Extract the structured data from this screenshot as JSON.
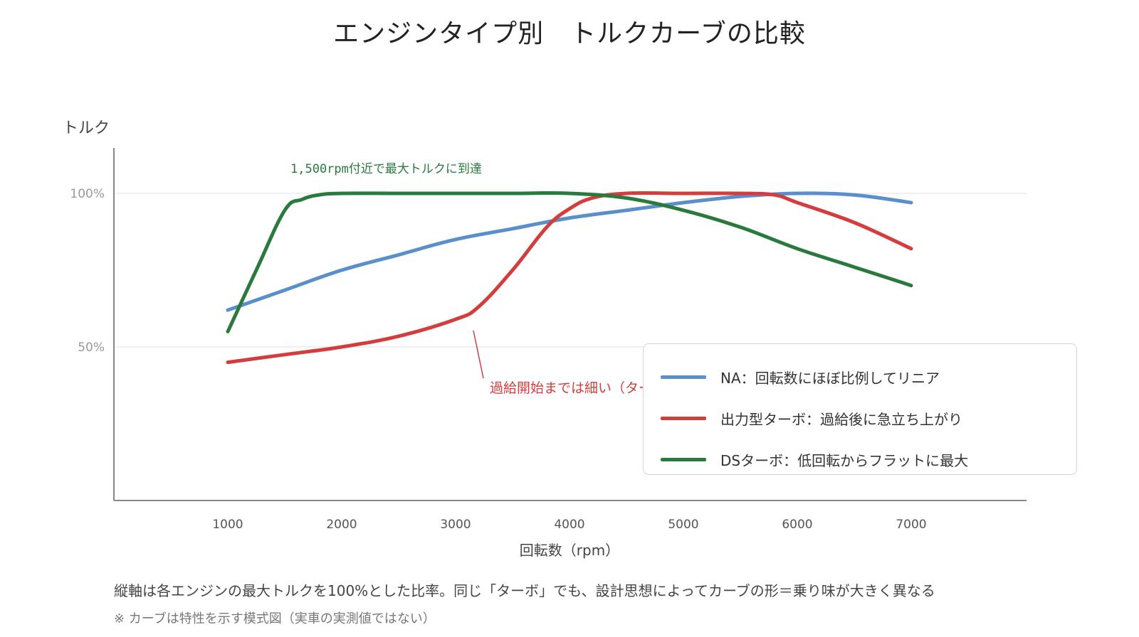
{
  "title": "エンジンタイプ別　トルクカーブの比較",
  "footnote": "縦軸は各エンジンの最大トルクを100%とした比率。同じ「ターボ」でも、設計思想によってカーブの形＝乗り味が大きく異なる",
  "note": "※ カーブは特性を示す模式図（実車の実測値ではない）",
  "chart_data": {
    "type": "line",
    "title": "エンジンタイプ別　トルクカーブの比較",
    "xlabel": "回転数（rpm）",
    "ylabel": "トルク",
    "xlim": [
      0,
      8000
    ],
    "ylim": [
      0,
      115
    ],
    "x_ticks": [
      1000,
      2000,
      3000,
      4000,
      5000,
      6000,
      7000
    ],
    "y_ticks": [
      {
        "value": 50,
        "label": "50%"
      },
      {
        "value": 100,
        "label": "100%"
      }
    ],
    "grid": "horizontal",
    "legend_position": "bottom-right",
    "series": [
      {
        "name": "NA：回転数にほぼ比例してリニア",
        "color": "#5b8fc9",
        "x": [
          1000,
          1500,
          2000,
          2500,
          3000,
          3500,
          4000,
          4500,
          5000,
          5500,
          6000,
          6500,
          7000
        ],
        "y": [
          62,
          68.5,
          75,
          80,
          85,
          88.5,
          92,
          94.5,
          97,
          99,
          100,
          99.5,
          97
        ]
      },
      {
        "name": "出力型ターボ：過給後に急立ち上がり",
        "color": "#d43d3d",
        "x": [
          1000,
          1500,
          2000,
          2500,
          3000,
          3200,
          3500,
          3800,
          4000,
          4200,
          4500,
          5000,
          5500,
          5800,
          6000,
          6500,
          7000
        ],
        "y": [
          45,
          47.5,
          50,
          53.5,
          59,
          63,
          75,
          89,
          95,
          98.5,
          100,
          100,
          100,
          99.5,
          97,
          90.5,
          82
        ]
      },
      {
        "name": "DSターボ：低回転からフラットに最大",
        "color": "#2a7a3e",
        "x": [
          1000,
          1250,
          1500,
          1650,
          1800,
          2000,
          2500,
          3000,
          3500,
          4000,
          4500,
          5000,
          5500,
          6000,
          6500,
          7000
        ],
        "y": [
          55,
          75,
          94.5,
          98,
          99.5,
          100,
          100,
          100,
          100,
          100,
          98.5,
          94.5,
          89,
          82,
          76,
          70
        ]
      }
    ],
    "annotations": [
      {
        "text": "1,500rpm付近で最大トルクに到達",
        "color": "#2a7a3e"
      },
      {
        "text": "過給開始までは細い（ターボラグ）",
        "color": "#d43d3d"
      }
    ]
  }
}
